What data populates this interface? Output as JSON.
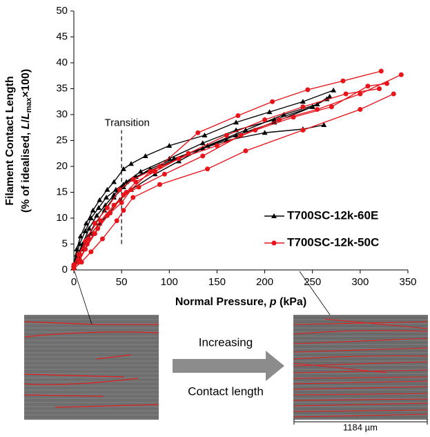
{
  "chart_data": {
    "type": "line",
    "y_label_line1": "Filament Contact Length",
    "y_label_line2": [
      "(% of idealised, ",
      "L",
      "/",
      "L",
      "max",
      "×100)"
    ],
    "x_label": [
      "Normal Pressure, ",
      "p",
      " (kPa)"
    ],
    "xlim": [
      0,
      350
    ],
    "xticks": [
      0,
      50,
      100,
      150,
      200,
      250,
      300,
      350
    ],
    "ylim": [
      0,
      50
    ],
    "yticks": [
      0,
      5,
      10,
      15,
      20,
      25,
      30,
      35,
      40,
      45,
      50
    ],
    "annotation": {
      "text": "Transition",
      "x": 50,
      "y_range": [
        5,
        27
      ]
    },
    "series": [
      {
        "name": "T700SC-12k-60E",
        "color": "#000000",
        "marker": "triangle",
        "x": [
          0,
          3,
          7,
          13,
          20,
          27,
          35,
          42,
          52,
          60,
          75,
          100,
          137,
          170,
          205,
          240,
          272
        ],
        "values": [
          1,
          4,
          6.5,
          9,
          11.5,
          13.5,
          15.5,
          17,
          19.5,
          20.5,
          22,
          24,
          26,
          28.5,
          30.5,
          32.5,
          34.7
        ]
      },
      {
        "color": "#000000",
        "marker": "triangle",
        "x": [
          0,
          4,
          9,
          16,
          24,
          33,
          42,
          52,
          65,
          90,
          120,
          160,
          200,
          240,
          262
        ],
        "values": [
          1,
          3,
          5,
          8,
          10.5,
          12.5,
          14.5,
          16.5,
          18,
          20,
          22.5,
          25,
          26.5,
          27.2,
          28
        ]
      },
      {
        "color": "#000000",
        "marker": "triangle",
        "x": [
          0,
          3,
          6,
          12,
          18,
          26,
          34,
          44,
          55,
          70,
          100,
          135,
          170,
          210,
          250,
          265
        ],
        "values": [
          0.5,
          3,
          5,
          7.5,
          10,
          12,
          14,
          15.5,
          17,
          19,
          21.5,
          24.5,
          27,
          29,
          31.5,
          33
        ]
      },
      {
        "color": "#000000",
        "marker": "triangle",
        "x": [
          0,
          5,
          10,
          18,
          27,
          37,
          48,
          60,
          85,
          110,
          140,
          180,
          220,
          255
        ],
        "values": [
          0.5,
          2.5,
          4.5,
          7,
          9,
          11,
          13.5,
          15.5,
          18.5,
          21,
          24,
          27,
          30,
          32
        ]
      },
      {
        "color": "#000000",
        "marker": "triangle",
        "x": [
          0,
          3,
          8,
          15,
          23,
          32,
          42,
          52,
          62,
          80,
          105,
          135,
          170,
          210,
          250,
          268
        ],
        "values": [
          0.5,
          2,
          4,
          6.5,
          9,
          11.5,
          14,
          16,
          17.5,
          19.5,
          21.5,
          23.5,
          26,
          28.5,
          31.5,
          33.5
        ]
      },
      {
        "name": "T700SC-12k-50C",
        "color": "#e8141b",
        "marker": "circle",
        "x": [
          0,
          5,
          12,
          22,
          35,
          48,
          62,
          90,
          130,
          172,
          208,
          245,
          282,
          322
        ],
        "values": [
          1,
          3,
          5.5,
          9,
          12,
          15.5,
          17.5,
          20,
          26.5,
          29.8,
          32.5,
          34.8,
          36.5,
          38.4
        ]
      },
      {
        "color": "#e8141b",
        "marker": "circle",
        "x": [
          0,
          6,
          14,
          25,
          38,
          52,
          68,
          95,
          135,
          175,
          215,
          255,
          300,
          343
        ],
        "values": [
          0.5,
          2,
          5,
          8,
          11,
          14.5,
          16,
          18.5,
          22,
          26,
          29,
          31,
          34,
          37.7
        ]
      },
      {
        "color": "#e8141b",
        "marker": "circle",
        "x": [
          0,
          8,
          18,
          30,
          45,
          52,
          62,
          90,
          140,
          180,
          240,
          300,
          335
        ],
        "values": [
          0.3,
          1.5,
          3.5,
          6,
          9.5,
          11.5,
          14,
          16.5,
          19.5,
          23,
          27,
          31,
          34
        ]
      },
      {
        "color": "#e8141b",
        "marker": "circle",
        "x": [
          0,
          5,
          12,
          22,
          35,
          50,
          60,
          80,
          110,
          150,
          190,
          230,
          270,
          308,
          328
        ],
        "values": [
          0.5,
          1.5,
          4,
          7,
          10.5,
          13,
          15.5,
          19,
          21.5,
          24,
          27,
          29.5,
          31.5,
          35.5,
          36
        ]
      },
      {
        "color": "#e8141b",
        "marker": "circle",
        "x": [
          0,
          6,
          15,
          28,
          42,
          55,
          65,
          85,
          120,
          160,
          200,
          240,
          285,
          320
        ],
        "values": [
          1,
          3,
          6,
          9.5,
          12.5,
          15,
          17,
          19,
          22.5,
          26,
          29,
          31.5,
          34,
          35
        ]
      }
    ]
  },
  "figure": {
    "arrow_top": "Increasing",
    "arrow_bottom": "Contact length",
    "scale_bar": "1184 µm"
  }
}
